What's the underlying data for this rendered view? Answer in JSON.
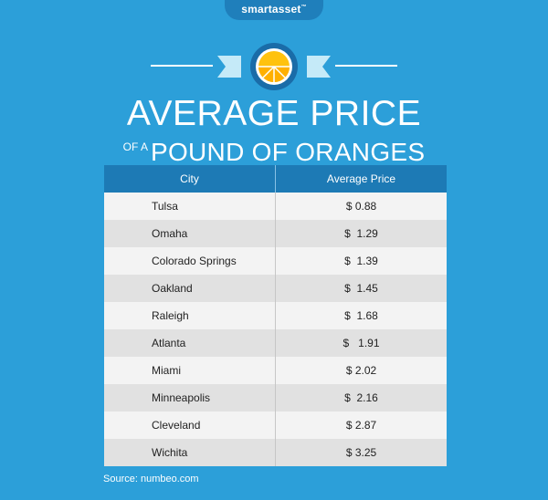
{
  "brand": {
    "name": "smartasset",
    "mark": "™"
  },
  "title": {
    "main": "AVERAGE PRICE",
    "sub_small": "OF A",
    "sub_big": "POUND OF ORANGES"
  },
  "colors": {
    "background": "#2c9fd9",
    "header": "#1d7ab5",
    "brand_tab": "#1f7fbb",
    "ribbon": "#c5eaf8",
    "badge": "#1a6ca8",
    "orange": "#ffc20e"
  },
  "icons": {
    "badge": "orange-slice-icon"
  },
  "chart_data": {
    "type": "table",
    "columns": [
      "City",
      "Average Price"
    ],
    "rows": [
      {
        "city": "Tulsa",
        "price_label": "$ 0.88",
        "value": 0.88
      },
      {
        "city": "Omaha",
        "price_label": "$  1.29",
        "value": 1.29
      },
      {
        "city": "Colorado Springs",
        "price_label": "$  1.39",
        "value": 1.39
      },
      {
        "city": "Oakland",
        "price_label": "$  1.45",
        "value": 1.45
      },
      {
        "city": "Raleigh",
        "price_label": "$  1.68",
        "value": 1.68
      },
      {
        "city": "Atlanta",
        "price_label": "$   1.91",
        "value": 1.91
      },
      {
        "city": "Miami",
        "price_label": "$ 2.02",
        "value": 2.02
      },
      {
        "city": "Minneapolis",
        "price_label": "$  2.16",
        "value": 2.16
      },
      {
        "city": "Cleveland",
        "price_label": "$ 2.87",
        "value": 2.87
      },
      {
        "city": "Wichita",
        "price_label": "$ 3.25",
        "value": 3.25
      }
    ]
  },
  "source": "Source: numbeo.com"
}
